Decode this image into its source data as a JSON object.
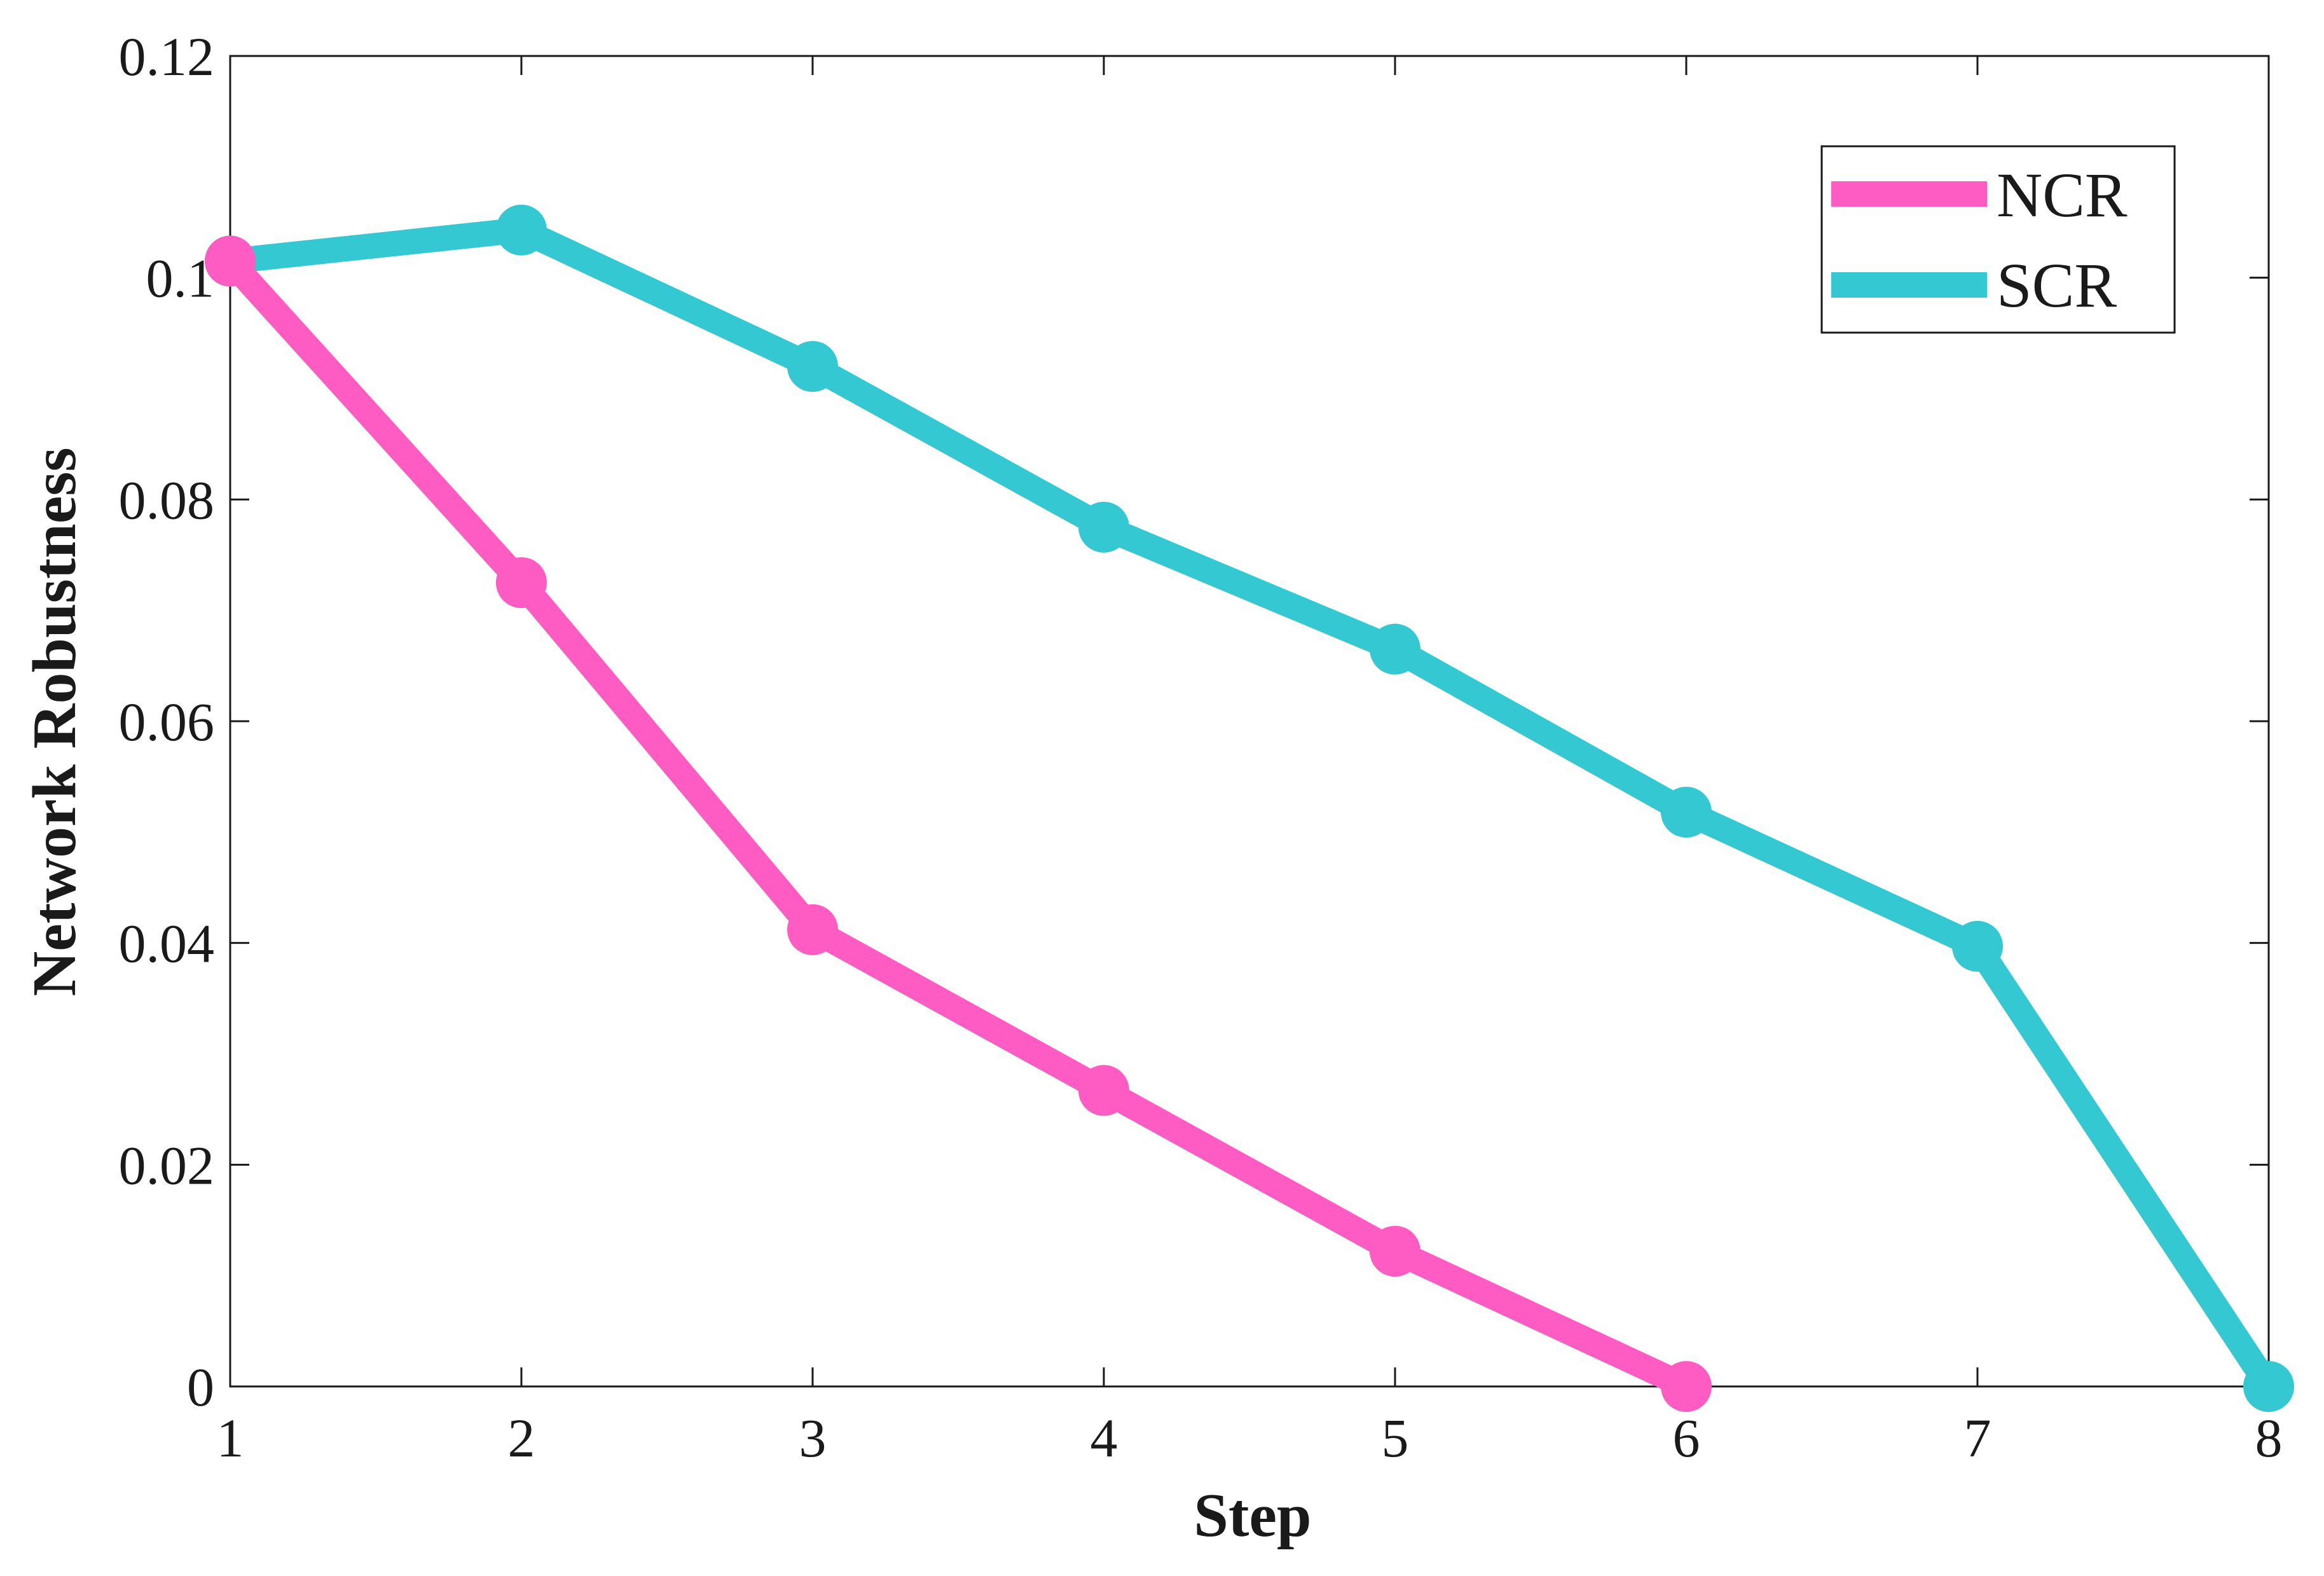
{
  "chart_data": {
    "type": "line",
    "title": "",
    "xlabel": "Step",
    "ylabel": "Network Robustness",
    "x": [
      1,
      2,
      3,
      4,
      5,
      6,
      7,
      8
    ],
    "xticks": [
      "1",
      "2",
      "3",
      "4",
      "5",
      "6",
      "7",
      "8"
    ],
    "yticks": [
      "0",
      "0.02",
      "0.04",
      "0.06",
      "0.08",
      "0.1",
      "0.12"
    ],
    "xlim": [
      1,
      8
    ],
    "ylim": [
      0,
      0.12
    ],
    "grid": false,
    "legend_position": "top-right",
    "series": [
      {
        "name": "NCR",
        "color": "#ff5cc3",
        "x": [
          1,
          2,
          3,
          4,
          5,
          6
        ],
        "values": [
          0.1015,
          0.0725,
          0.0412,
          0.0267,
          0.0122,
          0.0
        ]
      },
      {
        "name": "SCR",
        "color": "#33c8d2",
        "x": [
          1,
          2,
          3,
          4,
          5,
          6,
          7,
          8
        ],
        "values": [
          0.1015,
          0.1043,
          0.092,
          0.0775,
          0.0665,
          0.0518,
          0.0397,
          0.0
        ]
      }
    ]
  }
}
